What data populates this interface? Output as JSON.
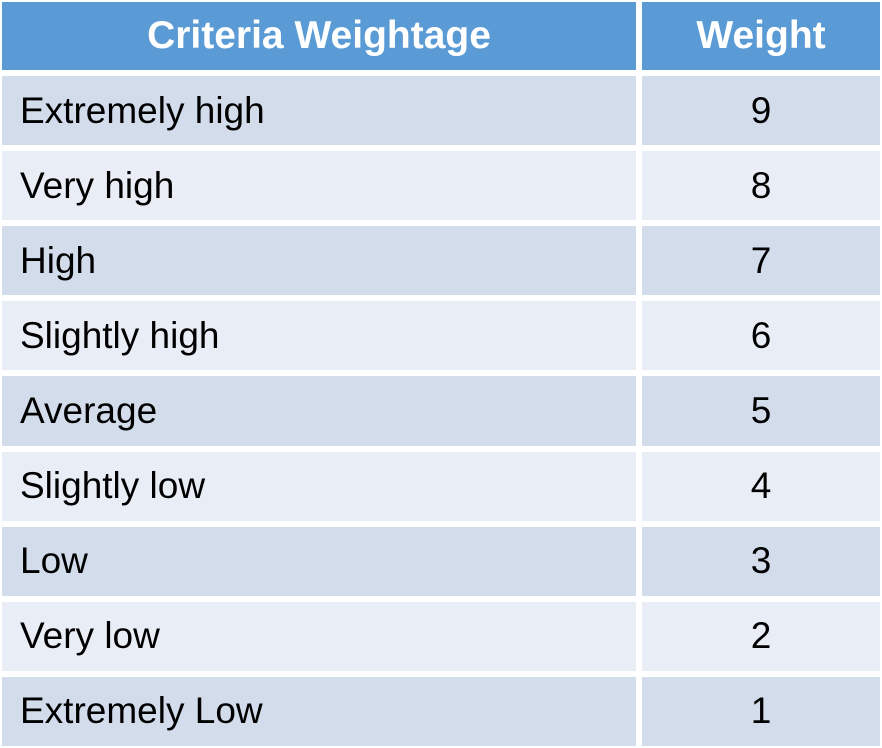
{
  "chart_data": {
    "type": "table",
    "title": "Criteria Weightage",
    "columns": [
      "Criteria Weightage",
      "Weight"
    ],
    "rows": [
      [
        "Extremely high",
        9
      ],
      [
        "Very high",
        8
      ],
      [
        "High",
        7
      ],
      [
        "Slightly high",
        6
      ],
      [
        "Average",
        5
      ],
      [
        "Slightly low",
        4
      ],
      [
        "Low",
        3
      ],
      [
        "Very low",
        2
      ],
      [
        "Extremely Low",
        1
      ]
    ],
    "layout_hints": {
      "header_row": true,
      "banded_rows": true,
      "label_alignment": "left",
      "value_alignment": "center",
      "grid": "white gaps between cells"
    }
  },
  "colors": {
    "header_bg": "#5B9BD5",
    "header_text": "#FFFFFF",
    "band_dark": "#D2DCEB",
    "band_light": "#E9EDF6",
    "body_text": "#000000",
    "gap": "#FFFFFF"
  }
}
